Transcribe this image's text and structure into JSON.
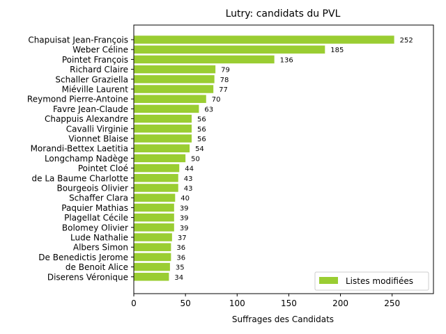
{
  "chart_data": {
    "type": "bar",
    "orientation": "horizontal",
    "title": "Lutry: candidats du PVL",
    "xlabel": "Suffrages des Candidats",
    "ylabel": "",
    "xlim": [
      0,
      290
    ],
    "xticks": [
      0,
      50,
      100,
      150,
      200,
      250
    ],
    "grid": false,
    "legend_position": "lower-right",
    "bar_color": "#9acd32",
    "series": [
      {
        "name": "Listes modifiées",
        "values": [
          252,
          185,
          136,
          79,
          78,
          77,
          70,
          63,
          56,
          56,
          56,
          54,
          50,
          44,
          43,
          43,
          40,
          39,
          39,
          39,
          37,
          36,
          36,
          35,
          34
        ]
      }
    ],
    "categories": [
      "Chapuisat Jean-François",
      "Weber Céline",
      "Pointet François",
      "Richard Claire",
      "Schaller Graziella",
      "Miéville Laurent",
      "Reymond Pierre-Antoine",
      "Favre Jean-Claude",
      "Chappuis Alexandre",
      "Cavalli Virginie",
      "Vionnet Blaise",
      "Morandi-Bettex Laetitia",
      "Longchamp Nadège",
      "Pointet Cloé",
      "de La Baume Charlotte",
      "Bourgeois Olivier",
      "Schaffer Clara",
      "Paquier Mathias",
      "Plagellat Cécile",
      "Bolomey Olivier",
      "Lude Nathalie",
      "Albers Simon",
      "De Benedictis Jerome",
      "de Benoit Alice",
      "Diserens Véronique"
    ]
  }
}
